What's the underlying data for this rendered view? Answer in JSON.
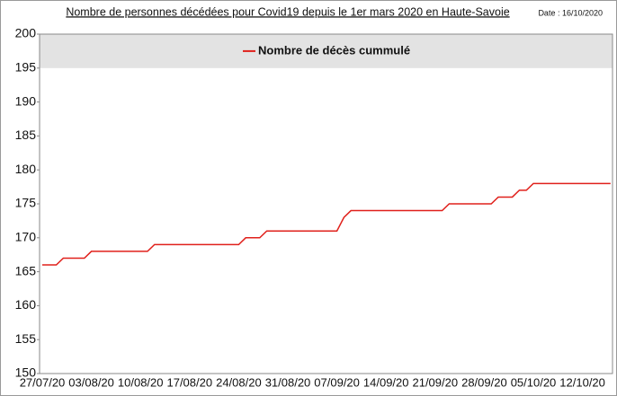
{
  "chart_data": {
    "type": "line",
    "title": "Nombre de personnes décédées pour Covid19 depuis le 1er mars 2020 en Haute-Savoie",
    "date_note": "Date : 16/10/2020",
    "categories": [
      "27/07/20",
      null,
      null,
      null,
      null,
      null,
      null,
      "03/08/20",
      null,
      null,
      null,
      null,
      null,
      null,
      "10/08/20",
      null,
      null,
      null,
      null,
      null,
      null,
      "17/08/20",
      null,
      null,
      null,
      null,
      null,
      null,
      "24/08/20",
      null,
      null,
      null,
      null,
      null,
      null,
      "31/08/20",
      null,
      null,
      null,
      null,
      null,
      null,
      "07/09/20",
      null,
      null,
      null,
      null,
      null,
      null,
      "14/09/20",
      null,
      null,
      null,
      null,
      null,
      null,
      "21/09/20",
      null,
      null,
      null,
      null,
      null,
      null,
      "28/09/20",
      null,
      null,
      null,
      null,
      null,
      null,
      "05/10/20",
      null,
      null,
      null,
      null,
      null,
      null,
      "12/10/20",
      null,
      null,
      null,
      null
    ],
    "series": [
      {
        "name": "Nombre de décès cummulé",
        "color": "#e0201b",
        "values": [
          166,
          166,
          166,
          167,
          167,
          167,
          167,
          168,
          168,
          168,
          168,
          168,
          168,
          168,
          168,
          168,
          169,
          169,
          169,
          169,
          169,
          169,
          169,
          169,
          169,
          169,
          169,
          169,
          169,
          170,
          170,
          170,
          171,
          171,
          171,
          171,
          171,
          171,
          171,
          171,
          171,
          171,
          171,
          173,
          174,
          174,
          174,
          174,
          174,
          174,
          174,
          174,
          174,
          174,
          174,
          174,
          174,
          174,
          175,
          175,
          175,
          175,
          175,
          175,
          175,
          176,
          176,
          176,
          177,
          177,
          178,
          178,
          178,
          178,
          178,
          178,
          178,
          178,
          178,
          178,
          178,
          178
        ]
      }
    ],
    "ylim": [
      150,
      200
    ],
    "yticks": [
      150,
      155,
      160,
      165,
      170,
      175,
      180,
      185,
      190,
      195,
      200
    ],
    "grid": false,
    "legend": "top"
  }
}
